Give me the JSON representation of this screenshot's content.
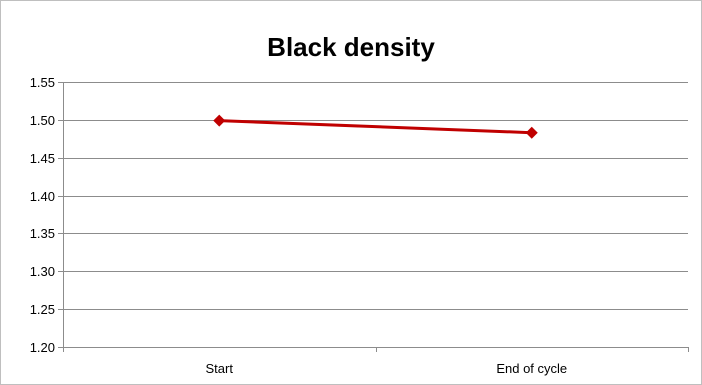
{
  "chart_data": {
    "type": "line",
    "title": "Black density",
    "xlabel": "",
    "ylabel": "",
    "categories": [
      "Start",
      "End of cycle"
    ],
    "series": [
      {
        "values": [
          1.499,
          1.483
        ],
        "color": "#c00000",
        "marker": "diamond"
      }
    ],
    "ylim": [
      1.2,
      1.55
    ],
    "ytick_step": 0.05,
    "yticks": [
      "1.20",
      "1.25",
      "1.30",
      "1.35",
      "1.40",
      "1.45",
      "1.50",
      "1.55"
    ],
    "grid": true,
    "legend": "none",
    "gridline_color": "#8c8c8c"
  }
}
